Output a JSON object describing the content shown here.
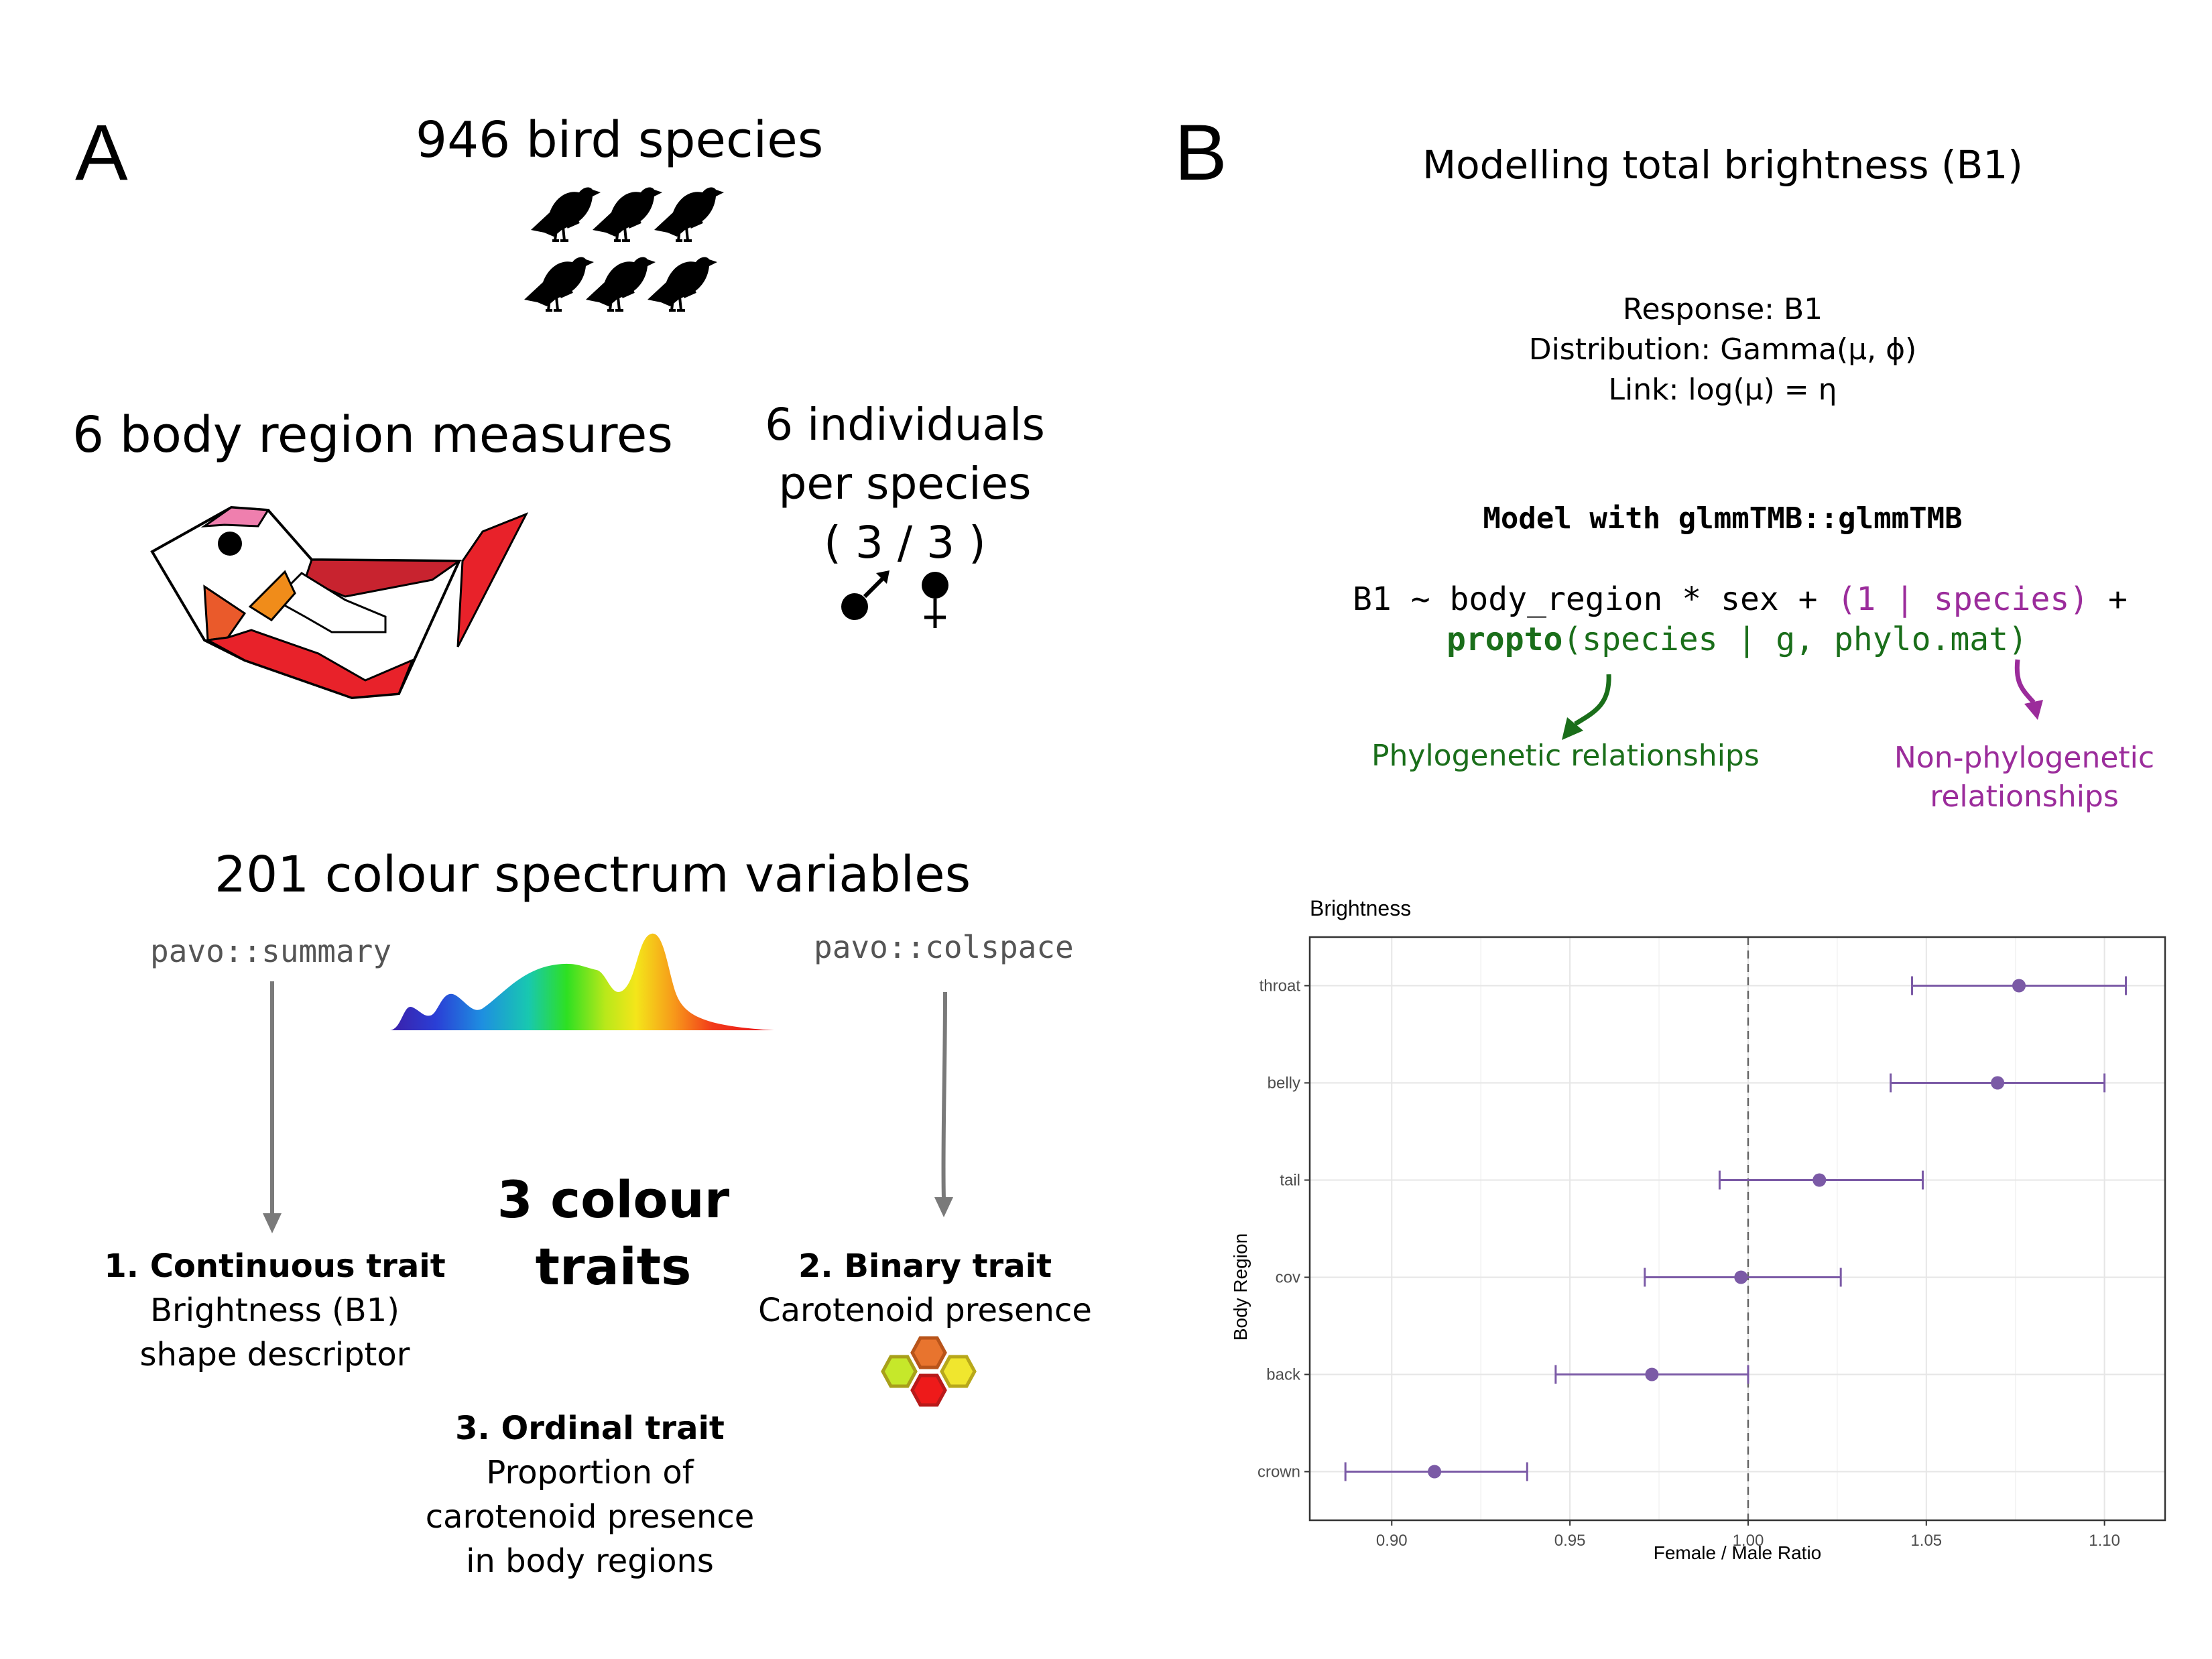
{
  "panel_a": {
    "letter": "A",
    "species_title": "946 bird species",
    "body_region_title": "6 body region measures",
    "individuals_lines": [
      "6 individuals",
      "per species",
      "( 3 / 3 )"
    ],
    "spectrum_title": "201 colour spectrum variables",
    "summary_fn": "pavo::summary",
    "colspace_fn": "pavo::colspace",
    "traits_title_lines": [
      "3 colour",
      "traits"
    ],
    "trait1": {
      "title": "1. Continuous trait",
      "lines": [
        "Brightness (B1)",
        "shape descriptor"
      ]
    },
    "trait2": {
      "title": "2. Binary trait",
      "lines": [
        "Carotenoid presence"
      ]
    },
    "trait3": {
      "title": "3. Ordinal trait",
      "lines": [
        "Proportion of",
        "carotenoid presence",
        "in body regions"
      ]
    },
    "icons": [
      "bird-silhouette-icon",
      "bird-region-diagram-icon",
      "male-symbol-icon",
      "female-symbol-icon",
      "colour-spectrum-icon",
      "hexagon-cluster-icon"
    ],
    "colors": {
      "phylo_green": "#1a6e1a",
      "nonphylo_purple": "#9b2c9b",
      "arrow_grey": "#7a7a7a"
    }
  },
  "panel_b": {
    "letter": "B",
    "title": "Modelling total brightness (B1)",
    "spec_lines": [
      "Response: B1",
      "Distribution: Gamma(μ, ϕ)",
      "Link: log(μ) = η"
    ],
    "model_heading": "Model with glmmTMB::glmmTMB",
    "formula": {
      "l1_a": "B1 ~ body_region * sex + ",
      "l1_b": "(1 | species)",
      "l1_c": " +",
      "l2_a": "propto",
      "l2_b": "(species | g, phylo.mat)"
    },
    "phylo_label": "Phylogenetic relationships",
    "nonphylo_label_lines": [
      "Non-phylogenetic",
      "relationships"
    ]
  },
  "chart_data": {
    "type": "scatter",
    "title": "Brightness",
    "xlabel": "Female / Male Ratio",
    "ylabel": "Body Region",
    "categories": [
      "throat",
      "belly",
      "tail",
      "cov",
      "back",
      "crown"
    ],
    "estimate": [
      1.076,
      1.07,
      1.02,
      0.998,
      0.973,
      0.912
    ],
    "lower": [
      1.046,
      1.04,
      0.992,
      0.971,
      0.946,
      0.887
    ],
    "upper": [
      1.106,
      1.1,
      1.049,
      1.026,
      1.0,
      0.938
    ],
    "xlim": [
      0.877,
      1.117
    ],
    "xticks": [
      "0.90",
      "0.95",
      "1.00",
      "1.05",
      "1.10"
    ],
    "reference_line": 1.0,
    "grid": true,
    "point_color": "#7b5aa6"
  }
}
